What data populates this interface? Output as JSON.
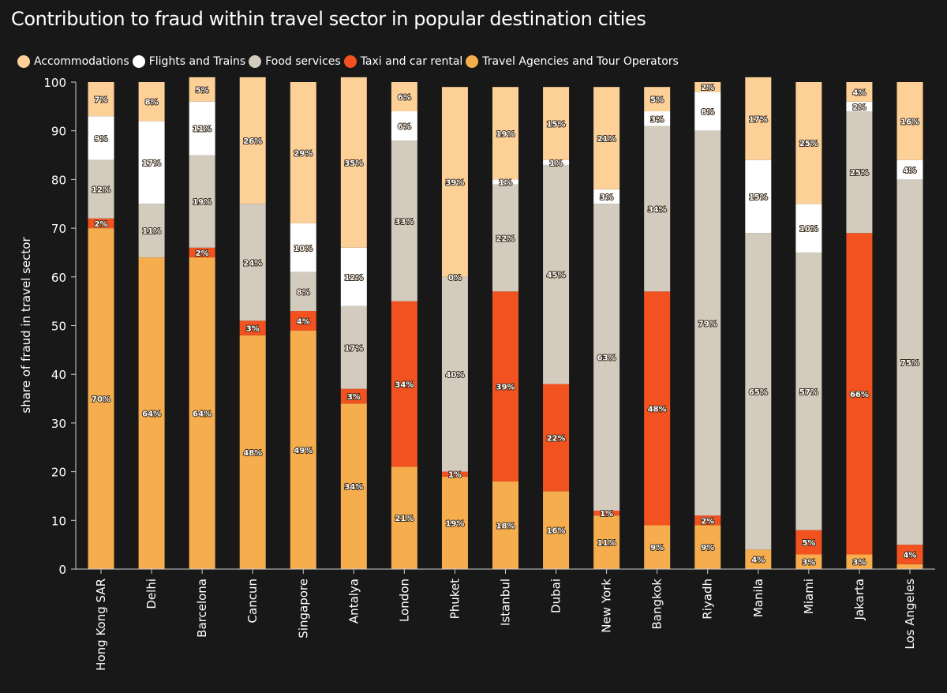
{
  "chart_data": {
    "type": "bar",
    "stacked": true,
    "title": "Contribution to fraud within travel sector in popular destination cities",
    "ylabel": "share of fraud in travel sector",
    "xlabel": "",
    "ylim": [
      0,
      100
    ],
    "yticks": [
      0,
      10,
      20,
      30,
      40,
      50,
      60,
      70,
      80,
      90,
      100
    ],
    "legend_position": "top-left",
    "categories": [
      "Hong Kong SAR",
      "Delhi",
      "Barcelona",
      "Cancun",
      "Singapore",
      "Antalya",
      "London",
      "Phuket",
      "Istanbul",
      "Dubai",
      "New York",
      "Bangkok",
      "Riyadh",
      "Manila",
      "Miami",
      "Jakarta",
      "Los Angeles"
    ],
    "series": [
      {
        "name": "Travel Agencies and Tour Operators",
        "color": "#f5ad4e",
        "values": [
          70,
          64,
          64,
          48,
          49,
          34,
          21,
          19,
          18,
          16,
          11,
          9,
          9,
          4,
          3,
          3,
          1
        ]
      },
      {
        "name": "Taxi and car rental",
        "color": "#f2521f",
        "values": [
          2,
          0,
          2,
          3,
          4,
          3,
          34,
          1,
          39,
          22,
          1,
          48,
          2,
          0,
          5,
          66,
          4
        ]
      },
      {
        "name": "Food services",
        "color": "#d3cbbe",
        "values": [
          12,
          11,
          19,
          24,
          8,
          17,
          33,
          40,
          22,
          45,
          63,
          34,
          79,
          65,
          57,
          25,
          75
        ]
      },
      {
        "name": "Flights and Trains",
        "color": "#ffffff",
        "values": [
          9,
          17,
          11,
          0,
          10,
          12,
          6,
          0,
          1,
          1,
          3,
          3,
          8,
          15,
          10,
          2,
          4
        ]
      },
      {
        "name": "Accommodations",
        "color": "#fdd097",
        "values": [
          7,
          8,
          5,
          26,
          29,
          35,
          6,
          39,
          19,
          15,
          21,
          5,
          2,
          17,
          25,
          4,
          16
        ]
      }
    ],
    "labels_hidden": [
      [
        false,
        false,
        false,
        false,
        false
      ],
      [
        false,
        true,
        false,
        false,
        false
      ],
      [
        false,
        false,
        false,
        false,
        false
      ],
      [
        false,
        false,
        false,
        true,
        false
      ],
      [
        false,
        false,
        false,
        false,
        false
      ],
      [
        false,
        false,
        false,
        false,
        false
      ],
      [
        false,
        false,
        false,
        false,
        false
      ],
      [
        false,
        false,
        false,
        false,
        false
      ],
      [
        false,
        false,
        false,
        false,
        false
      ],
      [
        false,
        false,
        false,
        false,
        false
      ],
      [
        false,
        false,
        false,
        false,
        false
      ],
      [
        false,
        false,
        false,
        false,
        false
      ],
      [
        false,
        false,
        false,
        false,
        false
      ],
      [
        false,
        true,
        false,
        false,
        false
      ],
      [
        false,
        false,
        false,
        false,
        false
      ],
      [
        false,
        false,
        false,
        false,
        false
      ],
      [
        true,
        false,
        false,
        false,
        false
      ]
    ]
  },
  "legend": {
    "items": [
      {
        "label": "Accommodations",
        "color": "#fdd097"
      },
      {
        "label": "Flights and Trains",
        "color": "#ffffff"
      },
      {
        "label": "Food services",
        "color": "#d3cbbe"
      },
      {
        "label": "Taxi and car rental",
        "color": "#f2521f"
      },
      {
        "label": "Travel Agencies and Tour Operators",
        "color": "#f5ad4e"
      }
    ]
  },
  "colors": {
    "background": "#181818",
    "text": "#ffffff",
    "axis": "#cfcfcf"
  }
}
